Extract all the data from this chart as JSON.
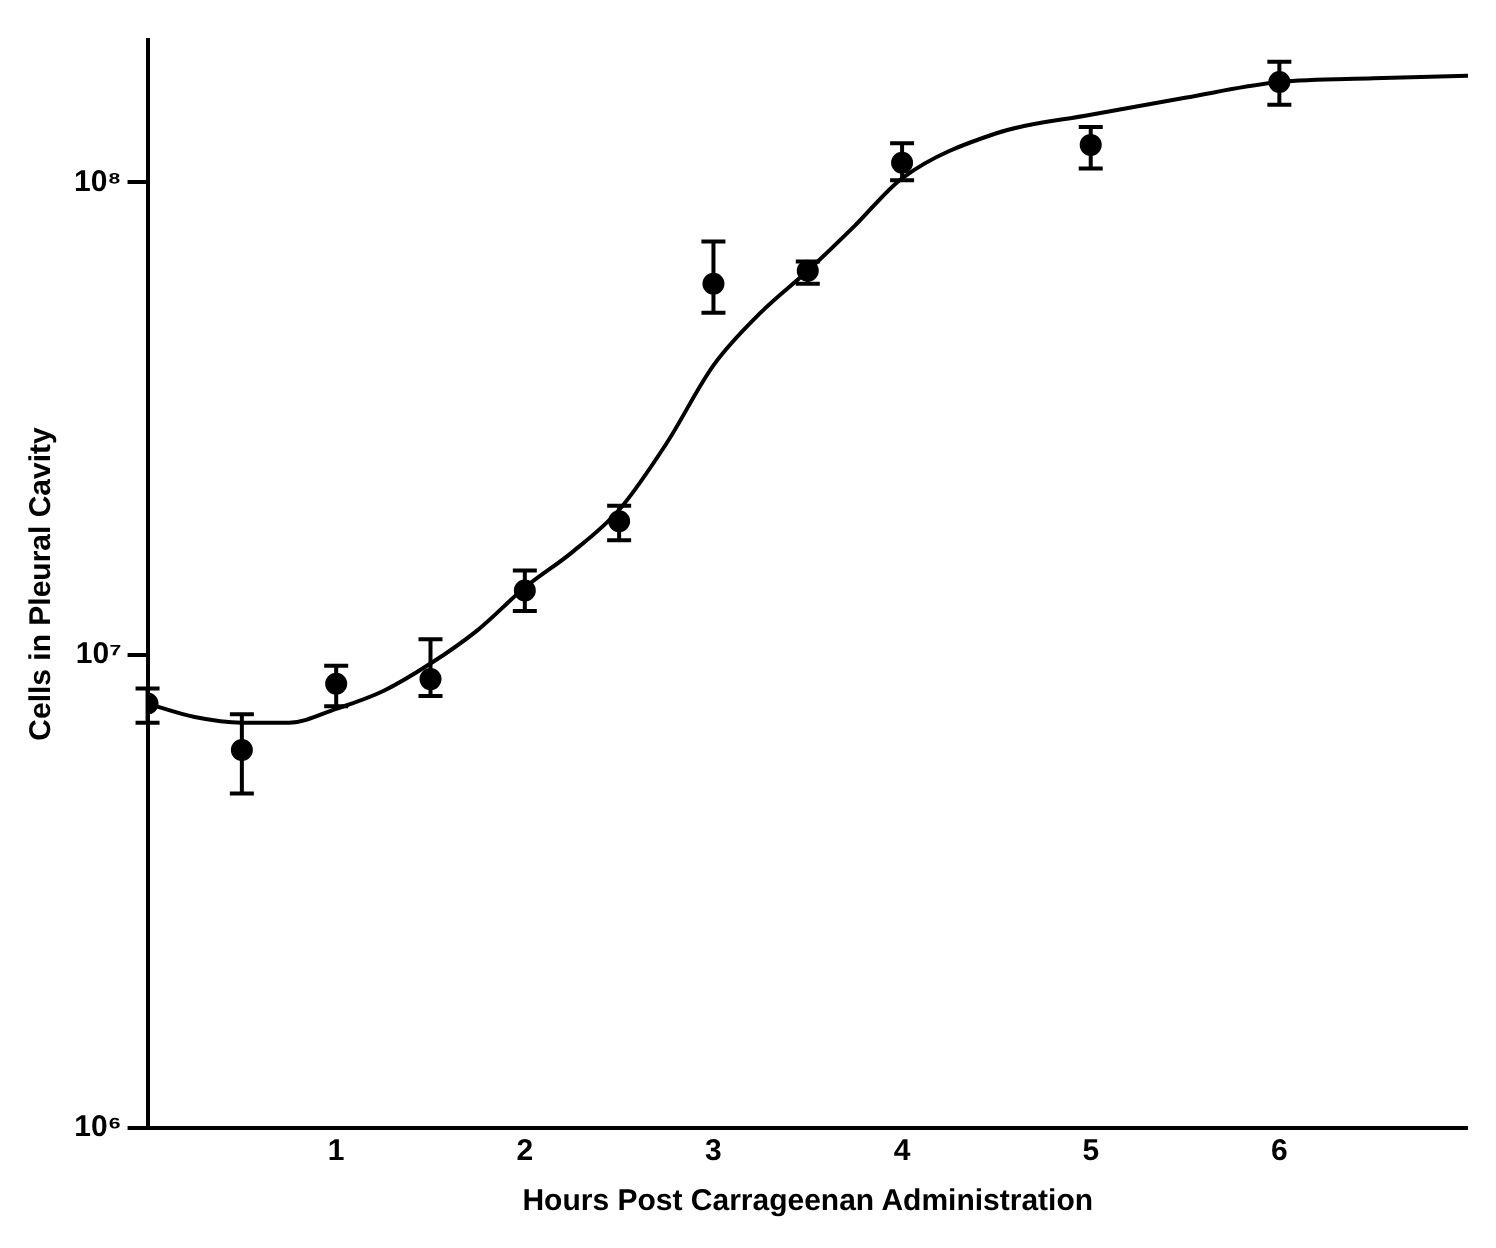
{
  "chart_data": {
    "type": "scatter",
    "xlabel": "Hours Post Carrageenan Administration",
    "ylabel": "Cells in Pleural Cavity",
    "xlim": [
      0,
      7
    ],
    "xticks": [
      1,
      2,
      3,
      4,
      5,
      6
    ],
    "ylim": [
      1000000,
      200000000
    ],
    "log": "y",
    "yticks": [
      {
        "value": 1000000,
        "label": "10⁶"
      },
      {
        "value": 10000000,
        "label": "10⁷"
      },
      {
        "value": 100000000,
        "label": "10⁸"
      }
    ],
    "grid": false,
    "legend": false,
    "series": [
      {
        "type": "scatter",
        "color": "#000000",
        "marker": "circle",
        "x": [
          0,
          0.5,
          1,
          1.5,
          2,
          2.5,
          3,
          3.5,
          4,
          5,
          6
        ],
        "values": [
          7900000,
          6300000,
          8700000,
          8900000,
          13700000,
          19200000,
          61000000,
          65000000,
          110000000,
          120000000,
          163000000
        ],
        "errors": [
          [
            7200000,
            8500000
          ],
          [
            5100000,
            7500000
          ],
          [
            7800000,
            9500000
          ],
          [
            8200000,
            10800000
          ],
          [
            12400000,
            15100000
          ],
          [
            17500000,
            20700000
          ],
          [
            53000000,
            75000000
          ],
          [
            61000000,
            68000000
          ],
          [
            101000000,
            121000000
          ],
          [
            107000000,
            131000000
          ],
          [
            146000000,
            180000000
          ]
        ]
      },
      {
        "type": "line",
        "color": "#000000",
        "marker": "none",
        "line_style": "solid",
        "x": [
          0,
          0.25,
          0.5,
          0.75,
          1,
          1.25,
          1.5,
          1.75,
          2,
          2.25,
          2.5,
          2.75,
          3,
          3.25,
          3.5,
          3.75,
          4,
          4.5,
          5,
          5.5,
          6,
          6.5,
          7
        ],
        "values": [
          7900000,
          7400000,
          7200000,
          7200000,
          7700000,
          8400000,
          9600000,
          11300000,
          13900000,
          16500000,
          20300000,
          28000000,
          41000000,
          53000000,
          65000000,
          81000000,
          102000000,
          127000000,
          139000000,
          151000000,
          163000000,
          166000000,
          168000000
        ]
      }
    ]
  }
}
